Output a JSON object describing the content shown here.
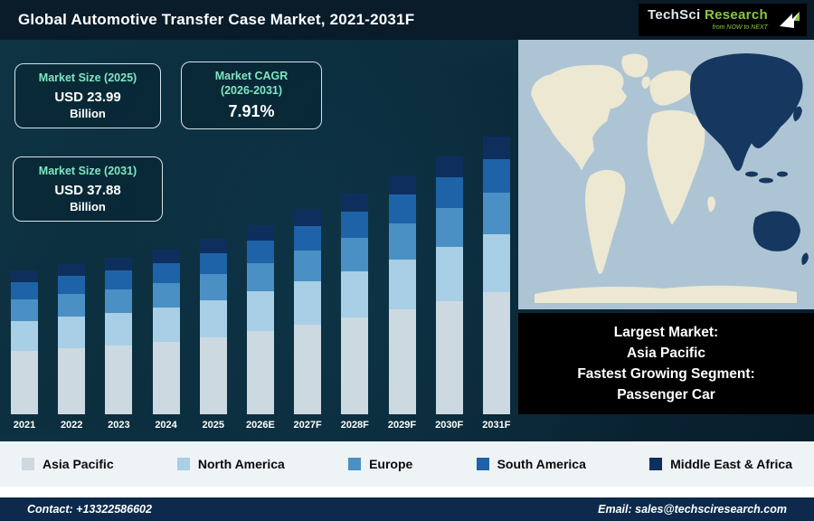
{
  "header": {
    "title": "Global Automotive Transfer Case Market, 2021-2031F"
  },
  "logo": {
    "part1": "TechSci ",
    "part2": "Research",
    "tagline": "from NOW to NEXT"
  },
  "stats": [
    {
      "label": "Market Size (2025)",
      "value": "USD 23.99",
      "unit": "Billion"
    },
    {
      "label": "Market CAGR",
      "sublabel": "(2026-2031)",
      "value": "7.91%"
    },
    {
      "label": "Market Size (2031)",
      "value": "USD 37.88",
      "unit": "Billion"
    }
  ],
  "chart_data": {
    "type": "bar",
    "stacked": true,
    "title": "Global Automotive Transfer Case Market, 2021-2031F",
    "unit": "USD Billion",
    "categories": [
      "2021",
      "2022",
      "2023",
      "2024",
      "2025",
      "2026E",
      "2027F",
      "2028F",
      "2029F",
      "2030F",
      "2031F"
    ],
    "series": [
      {
        "name": "Asia Pacific",
        "color": "#cdd9e1",
        "values": [
          8.59,
          8.98,
          9.41,
          9.94,
          10.56,
          11.39,
          12.29,
          13.27,
          14.31,
          15.44,
          16.67
        ]
      },
      {
        "name": "North America",
        "color": "#a8cfe5",
        "values": [
          4.1,
          4.29,
          4.49,
          4.75,
          5.04,
          5.44,
          5.87,
          6.33,
          6.83,
          7.37,
          7.95
        ]
      },
      {
        "name": "Europe",
        "color": "#4a90c4",
        "values": [
          2.93,
          3.06,
          3.21,
          3.39,
          3.6,
          3.88,
          4.19,
          4.52,
          4.88,
          5.27,
          5.68
        ]
      },
      {
        "name": "South America",
        "color": "#1e63a8",
        "values": [
          2.34,
          2.45,
          2.57,
          2.71,
          2.88,
          3.11,
          3.35,
          3.62,
          3.9,
          4.21,
          4.55
        ]
      },
      {
        "name": "Middle East & Africa",
        "color": "#0e2f5e",
        "values": [
          1.56,
          1.63,
          1.71,
          1.81,
          1.92,
          2.07,
          2.24,
          2.41,
          2.6,
          2.81,
          3.03
        ]
      }
    ],
    "totals": [
      19.52,
      20.41,
      21.38,
      22.6,
      23.99,
      25.89,
      27.94,
      30.15,
      32.53,
      35.1,
      37.88
    ],
    "ylim": [
      0,
      42
    ],
    "grid": false,
    "legend_position": "bottom"
  },
  "legend": [
    {
      "label": "Asia Pacific",
      "color": "#cdd9e1"
    },
    {
      "label": "North America",
      "color": "#a8cfe5"
    },
    {
      "label": "Europe",
      "color": "#4a90c4"
    },
    {
      "label": "South America",
      "color": "#1e63a8"
    },
    {
      "label": "Middle East & Africa",
      "color": "#0e2f5e"
    }
  ],
  "map_panel": {
    "lines": [
      "Largest Market:",
      "Asia Pacific",
      "Fastest Growing Segment:",
      "Passenger Car"
    ]
  },
  "footer": {
    "contact": "Contact: +13322586602",
    "email": "Email: sales@techsciresearch.com"
  },
  "colors": {
    "accent_green": "#8dc63f",
    "stat_label": "#7fe7c3",
    "map_ocean": "#adc4d4",
    "map_land": "#ece8d2",
    "map_highlight": "#16375f",
    "info_bg": "#000000",
    "legend_bg": "#eef3f6",
    "footer_bg": "#0d2a4d"
  }
}
